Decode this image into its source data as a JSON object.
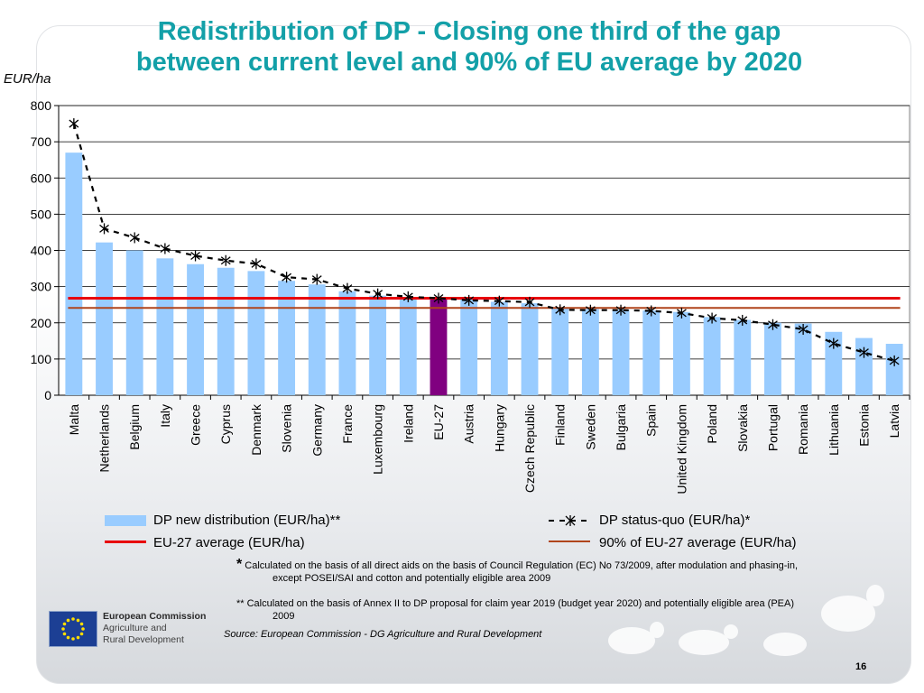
{
  "title": {
    "line1": "Redistribution of DP - Closing one third of the gap",
    "line2": "between current level and 90% of EU average by 2020"
  },
  "unit_label": "EUR/ha",
  "colors": {
    "title": "#13a0a8",
    "bar": "#99ccff",
    "bar_highlight": "#800080",
    "eu_avg": "#e8000b",
    "eu_90": "#b0451c",
    "status_quo": "#000000"
  },
  "chart_data": {
    "type": "bar",
    "categories": [
      "Malta",
      "Netherlands",
      "Belgium",
      "Italy",
      "Greece",
      "Cyprus",
      "Denmark",
      "Slovenia",
      "Germany",
      "France",
      "Luxembourg",
      "Ireland",
      "EU-27",
      "Austria",
      "Hungary",
      "Czech Republic",
      "Finland",
      "Sweden",
      "Bulgaria",
      "Spain",
      "United Kingdom",
      "Poland",
      "Slovakia",
      "Portugal",
      "Romania",
      "Lithuania",
      "Estonia",
      "Latvia"
    ],
    "highlight_category": "EU-27",
    "series": [
      {
        "name": "DP new distribution (EUR/ha)**",
        "kind": "bar",
        "values": [
          670,
          422,
          400,
          378,
          362,
          352,
          343,
          316,
          306,
          287,
          275,
          270,
          267,
          265,
          258,
          254,
          240,
          238,
          236,
          234,
          230,
          216,
          208,
          200,
          198,
          175,
          158,
          142
        ]
      },
      {
        "name": "DP status-quo (EUR/ha)*",
        "kind": "dashed-line-marker",
        "values": [
          750,
          460,
          435,
          405,
          385,
          372,
          363,
          326,
          320,
          295,
          280,
          272,
          268,
          262,
          260,
          257,
          236,
          235,
          235,
          233,
          227,
          213,
          207,
          195,
          182,
          143,
          118,
          95
        ]
      },
      {
        "name": "EU-27 average (EUR/ha)",
        "kind": "hline",
        "value": 268
      },
      {
        "name": "90% of EU-27 average (EUR/ha)",
        "kind": "hline",
        "value": 241
      }
    ],
    "ylabel": "EUR/ha",
    "ylim": [
      0,
      800
    ],
    "yticks": [
      0,
      100,
      200,
      300,
      400,
      500,
      600,
      700,
      800
    ],
    "grid": true,
    "legend_position": "bottom"
  },
  "legend": {
    "bar_label": "DP new distribution (EUR/ha)**",
    "status_quo_label": "DP status-quo (EUR/ha)*",
    "eu_avg_label": "EU-27 average (EUR/ha)",
    "eu_90_label": "90% of EU-27 average (EUR/ha)"
  },
  "notes": {
    "star": "*",
    "note1_line1": "Calculated on the basis of all direct aids on the basis of Council Regulation (EC) No 73/2009, after modulation and phasing-in,",
    "note1_line2": "except POSEI/SAI and cotton and potentially eligible area 2009",
    "note2_line1": "** Calculated on the basis of Annex II to DP proposal for claim year 2019 (budget year 2020) and potentially eligible area (PEA)",
    "note2_line2": "2009"
  },
  "source": "Source: European Commission - DG Agriculture and Rural Development",
  "logo": {
    "org": "European Commission",
    "dept_line1": "Agriculture and",
    "dept_line2": "Rural Development"
  },
  "page_number": "16"
}
